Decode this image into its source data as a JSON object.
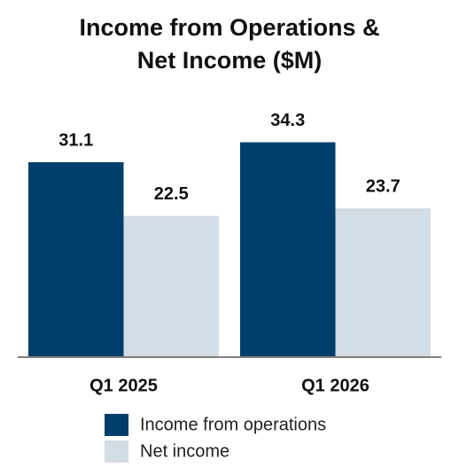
{
  "chart_data": {
    "type": "bar",
    "title": [
      "Income from Operations &",
      "Net Income ($M)"
    ],
    "categories": [
      "Q1 2025",
      "Q1 2026"
    ],
    "series": [
      {
        "name": "Income from operations",
        "color": "#003f6b",
        "values": [
          31.1,
          34.3
        ]
      },
      {
        "name": "Net income",
        "color": "#d3dde6",
        "values": [
          22.5,
          23.7
        ]
      }
    ]
  }
}
